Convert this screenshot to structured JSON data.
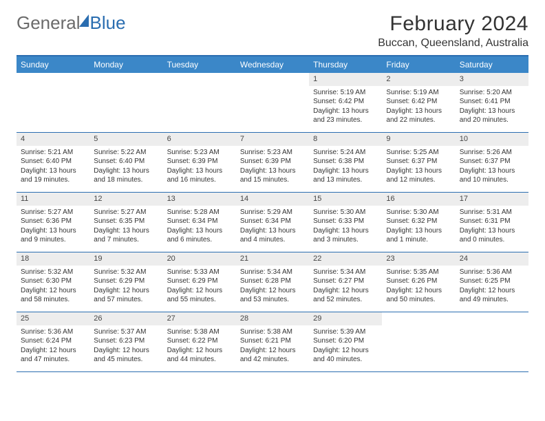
{
  "logo": {
    "part1": "General",
    "part2": "Blue"
  },
  "title": "February 2024",
  "location": "Buccan, Queensland, Australia",
  "colors": {
    "accent": "#2a6db0",
    "header_bg": "#3b87c8",
    "daynum_bg": "#ededed",
    "text": "#333333"
  },
  "weekdays": [
    "Sunday",
    "Monday",
    "Tuesday",
    "Wednesday",
    "Thursday",
    "Friday",
    "Saturday"
  ],
  "weeks": [
    [
      null,
      null,
      null,
      null,
      {
        "d": "1",
        "sr": "Sunrise: 5:19 AM",
        "ss": "Sunset: 6:42 PM",
        "dl1": "Daylight: 13 hours",
        "dl2": "and 23 minutes."
      },
      {
        "d": "2",
        "sr": "Sunrise: 5:19 AM",
        "ss": "Sunset: 6:42 PM",
        "dl1": "Daylight: 13 hours",
        "dl2": "and 22 minutes."
      },
      {
        "d": "3",
        "sr": "Sunrise: 5:20 AM",
        "ss": "Sunset: 6:41 PM",
        "dl1": "Daylight: 13 hours",
        "dl2": "and 20 minutes."
      }
    ],
    [
      {
        "d": "4",
        "sr": "Sunrise: 5:21 AM",
        "ss": "Sunset: 6:40 PM",
        "dl1": "Daylight: 13 hours",
        "dl2": "and 19 minutes."
      },
      {
        "d": "5",
        "sr": "Sunrise: 5:22 AM",
        "ss": "Sunset: 6:40 PM",
        "dl1": "Daylight: 13 hours",
        "dl2": "and 18 minutes."
      },
      {
        "d": "6",
        "sr": "Sunrise: 5:23 AM",
        "ss": "Sunset: 6:39 PM",
        "dl1": "Daylight: 13 hours",
        "dl2": "and 16 minutes."
      },
      {
        "d": "7",
        "sr": "Sunrise: 5:23 AM",
        "ss": "Sunset: 6:39 PM",
        "dl1": "Daylight: 13 hours",
        "dl2": "and 15 minutes."
      },
      {
        "d": "8",
        "sr": "Sunrise: 5:24 AM",
        "ss": "Sunset: 6:38 PM",
        "dl1": "Daylight: 13 hours",
        "dl2": "and 13 minutes."
      },
      {
        "d": "9",
        "sr": "Sunrise: 5:25 AM",
        "ss": "Sunset: 6:37 PM",
        "dl1": "Daylight: 13 hours",
        "dl2": "and 12 minutes."
      },
      {
        "d": "10",
        "sr": "Sunrise: 5:26 AM",
        "ss": "Sunset: 6:37 PM",
        "dl1": "Daylight: 13 hours",
        "dl2": "and 10 minutes."
      }
    ],
    [
      {
        "d": "11",
        "sr": "Sunrise: 5:27 AM",
        "ss": "Sunset: 6:36 PM",
        "dl1": "Daylight: 13 hours",
        "dl2": "and 9 minutes."
      },
      {
        "d": "12",
        "sr": "Sunrise: 5:27 AM",
        "ss": "Sunset: 6:35 PM",
        "dl1": "Daylight: 13 hours",
        "dl2": "and 7 minutes."
      },
      {
        "d": "13",
        "sr": "Sunrise: 5:28 AM",
        "ss": "Sunset: 6:34 PM",
        "dl1": "Daylight: 13 hours",
        "dl2": "and 6 minutes."
      },
      {
        "d": "14",
        "sr": "Sunrise: 5:29 AM",
        "ss": "Sunset: 6:34 PM",
        "dl1": "Daylight: 13 hours",
        "dl2": "and 4 minutes."
      },
      {
        "d": "15",
        "sr": "Sunrise: 5:30 AM",
        "ss": "Sunset: 6:33 PM",
        "dl1": "Daylight: 13 hours",
        "dl2": "and 3 minutes."
      },
      {
        "d": "16",
        "sr": "Sunrise: 5:30 AM",
        "ss": "Sunset: 6:32 PM",
        "dl1": "Daylight: 13 hours",
        "dl2": "and 1 minute."
      },
      {
        "d": "17",
        "sr": "Sunrise: 5:31 AM",
        "ss": "Sunset: 6:31 PM",
        "dl1": "Daylight: 13 hours",
        "dl2": "and 0 minutes."
      }
    ],
    [
      {
        "d": "18",
        "sr": "Sunrise: 5:32 AM",
        "ss": "Sunset: 6:30 PM",
        "dl1": "Daylight: 12 hours",
        "dl2": "and 58 minutes."
      },
      {
        "d": "19",
        "sr": "Sunrise: 5:32 AM",
        "ss": "Sunset: 6:29 PM",
        "dl1": "Daylight: 12 hours",
        "dl2": "and 57 minutes."
      },
      {
        "d": "20",
        "sr": "Sunrise: 5:33 AM",
        "ss": "Sunset: 6:29 PM",
        "dl1": "Daylight: 12 hours",
        "dl2": "and 55 minutes."
      },
      {
        "d": "21",
        "sr": "Sunrise: 5:34 AM",
        "ss": "Sunset: 6:28 PM",
        "dl1": "Daylight: 12 hours",
        "dl2": "and 53 minutes."
      },
      {
        "d": "22",
        "sr": "Sunrise: 5:34 AM",
        "ss": "Sunset: 6:27 PM",
        "dl1": "Daylight: 12 hours",
        "dl2": "and 52 minutes."
      },
      {
        "d": "23",
        "sr": "Sunrise: 5:35 AM",
        "ss": "Sunset: 6:26 PM",
        "dl1": "Daylight: 12 hours",
        "dl2": "and 50 minutes."
      },
      {
        "d": "24",
        "sr": "Sunrise: 5:36 AM",
        "ss": "Sunset: 6:25 PM",
        "dl1": "Daylight: 12 hours",
        "dl2": "and 49 minutes."
      }
    ],
    [
      {
        "d": "25",
        "sr": "Sunrise: 5:36 AM",
        "ss": "Sunset: 6:24 PM",
        "dl1": "Daylight: 12 hours",
        "dl2": "and 47 minutes."
      },
      {
        "d": "26",
        "sr": "Sunrise: 5:37 AM",
        "ss": "Sunset: 6:23 PM",
        "dl1": "Daylight: 12 hours",
        "dl2": "and 45 minutes."
      },
      {
        "d": "27",
        "sr": "Sunrise: 5:38 AM",
        "ss": "Sunset: 6:22 PM",
        "dl1": "Daylight: 12 hours",
        "dl2": "and 44 minutes."
      },
      {
        "d": "28",
        "sr": "Sunrise: 5:38 AM",
        "ss": "Sunset: 6:21 PM",
        "dl1": "Daylight: 12 hours",
        "dl2": "and 42 minutes."
      },
      {
        "d": "29",
        "sr": "Sunrise: 5:39 AM",
        "ss": "Sunset: 6:20 PM",
        "dl1": "Daylight: 12 hours",
        "dl2": "and 40 minutes."
      },
      null,
      null
    ]
  ]
}
